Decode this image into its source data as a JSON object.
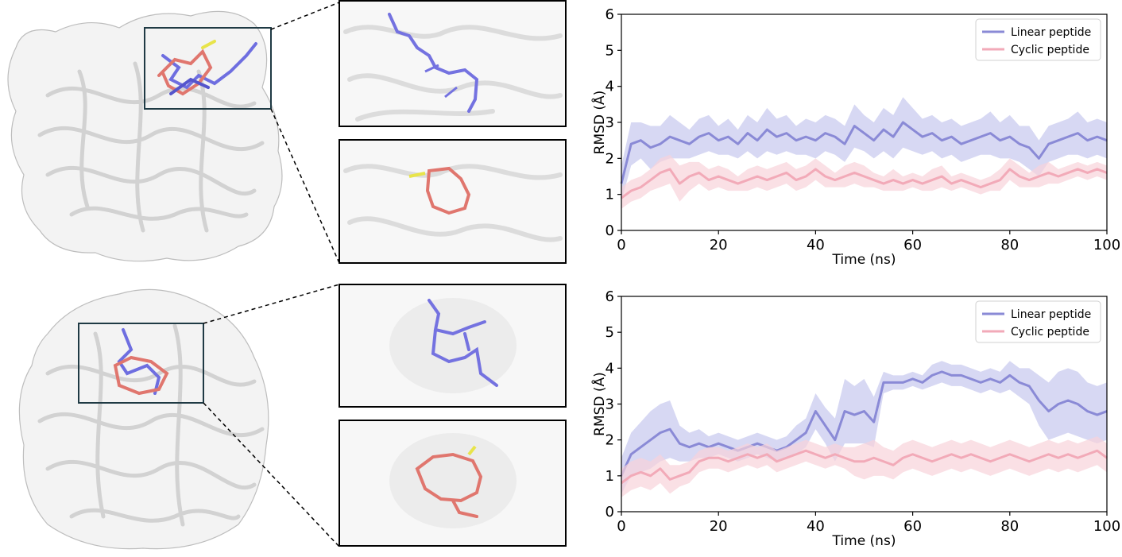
{
  "figure": {
    "colors": {
      "linear": "#8a8ad6",
      "linear_band": "#c6c8ee",
      "cyclic": "#f2aab8",
      "cyclic_band": "#f8d3da",
      "linear_stick": "#7472e0",
      "cyclic_stick": "#e07a72",
      "protein": "#d9d9d9",
      "frame": "#1f3a44"
    }
  },
  "chart_data": [
    {
      "type": "line",
      "id": "top",
      "xlabel": "Time (ns)",
      "ylabel": "RMSD (Å)",
      "xlim": [
        0,
        100
      ],
      "ylim": [
        0,
        6
      ],
      "xticks": [
        0,
        20,
        40,
        60,
        80,
        100
      ],
      "yticks": [
        0,
        1,
        2,
        3,
        4,
        5,
        6
      ],
      "legend_position": "top-right",
      "series": [
        {
          "name": "Linear peptide",
          "x": [
            0,
            2,
            4,
            6,
            8,
            10,
            12,
            14,
            16,
            18,
            20,
            22,
            24,
            26,
            28,
            30,
            32,
            34,
            36,
            38,
            40,
            42,
            44,
            46,
            48,
            50,
            52,
            54,
            56,
            58,
            60,
            62,
            64,
            66,
            68,
            70,
            72,
            74,
            76,
            78,
            80,
            82,
            84,
            86,
            88,
            90,
            92,
            94,
            96,
            98,
            100
          ],
          "values": [
            1.3,
            2.4,
            2.5,
            2.3,
            2.4,
            2.6,
            2.5,
            2.4,
            2.6,
            2.7,
            2.5,
            2.6,
            2.4,
            2.7,
            2.5,
            2.8,
            2.6,
            2.7,
            2.5,
            2.6,
            2.5,
            2.7,
            2.6,
            2.4,
            2.9,
            2.7,
            2.5,
            2.8,
            2.6,
            3.0,
            2.8,
            2.6,
            2.7,
            2.5,
            2.6,
            2.4,
            2.5,
            2.6,
            2.7,
            2.5,
            2.6,
            2.4,
            2.3,
            2.0,
            2.4,
            2.5,
            2.6,
            2.7,
            2.5,
            2.6,
            2.5
          ],
          "band": [
            0.5,
            0.6,
            0.5,
            0.6,
            0.5,
            0.6,
            0.5,
            0.4,
            0.5,
            0.5,
            0.4,
            0.5,
            0.4,
            0.5,
            0.5,
            0.6,
            0.5,
            0.5,
            0.4,
            0.5,
            0.5,
            0.5,
            0.5,
            0.5,
            0.6,
            0.5,
            0.5,
            0.6,
            0.6,
            0.7,
            0.6,
            0.5,
            0.5,
            0.5,
            0.5,
            0.5,
            0.5,
            0.5,
            0.6,
            0.5,
            0.6,
            0.5,
            0.6,
            0.5,
            0.5,
            0.5,
            0.5,
            0.6,
            0.5,
            0.5,
            0.5
          ]
        },
        {
          "name": "Cyclic peptide",
          "x": [
            0,
            2,
            4,
            6,
            8,
            10,
            12,
            14,
            16,
            18,
            20,
            22,
            24,
            26,
            28,
            30,
            32,
            34,
            36,
            38,
            40,
            42,
            44,
            46,
            48,
            50,
            52,
            54,
            56,
            58,
            60,
            62,
            64,
            66,
            68,
            70,
            72,
            74,
            76,
            78,
            80,
            82,
            84,
            86,
            88,
            90,
            92,
            94,
            96,
            98,
            100
          ],
          "values": [
            0.9,
            1.1,
            1.2,
            1.4,
            1.6,
            1.7,
            1.3,
            1.5,
            1.6,
            1.4,
            1.5,
            1.4,
            1.3,
            1.4,
            1.5,
            1.4,
            1.5,
            1.6,
            1.4,
            1.5,
            1.7,
            1.5,
            1.4,
            1.5,
            1.6,
            1.5,
            1.4,
            1.3,
            1.4,
            1.3,
            1.4,
            1.3,
            1.4,
            1.5,
            1.3,
            1.4,
            1.3,
            1.2,
            1.3,
            1.4,
            1.7,
            1.5,
            1.4,
            1.5,
            1.6,
            1.5,
            1.6,
            1.7,
            1.6,
            1.7,
            1.6
          ],
          "band": [
            0.3,
            0.3,
            0.3,
            0.3,
            0.4,
            0.4,
            0.5,
            0.4,
            0.3,
            0.3,
            0.3,
            0.3,
            0.2,
            0.3,
            0.3,
            0.3,
            0.3,
            0.3,
            0.3,
            0.3,
            0.3,
            0.3,
            0.2,
            0.3,
            0.3,
            0.3,
            0.2,
            0.2,
            0.3,
            0.2,
            0.2,
            0.2,
            0.3,
            0.3,
            0.2,
            0.2,
            0.2,
            0.2,
            0.2,
            0.3,
            0.3,
            0.3,
            0.2,
            0.3,
            0.3,
            0.2,
            0.2,
            0.2,
            0.2,
            0.2,
            0.2
          ]
        }
      ]
    },
    {
      "type": "line",
      "id": "bottom",
      "xlabel": "Time (ns)",
      "ylabel": "RMSD (Å)",
      "xlim": [
        0,
        100
      ],
      "ylim": [
        0,
        6
      ],
      "xticks": [
        0,
        20,
        40,
        60,
        80,
        100
      ],
      "yticks": [
        0,
        1,
        2,
        3,
        4,
        5,
        6
      ],
      "legend_position": "top-right",
      "series": [
        {
          "name": "Linear peptide",
          "x": [
            0,
            2,
            4,
            6,
            8,
            10,
            12,
            14,
            16,
            18,
            20,
            22,
            24,
            26,
            28,
            30,
            32,
            34,
            36,
            38,
            40,
            42,
            44,
            46,
            48,
            50,
            52,
            54,
            56,
            58,
            60,
            62,
            64,
            66,
            68,
            70,
            72,
            74,
            76,
            78,
            80,
            82,
            84,
            86,
            88,
            90,
            92,
            94,
            96,
            98,
            100
          ],
          "values": [
            1.0,
            1.6,
            1.8,
            2.0,
            2.2,
            2.3,
            1.9,
            1.8,
            1.9,
            1.8,
            1.9,
            1.8,
            1.7,
            1.8,
            1.9,
            1.8,
            1.7,
            1.8,
            2.0,
            2.2,
            2.8,
            2.4,
            2.0,
            2.8,
            2.7,
            2.8,
            2.5,
            3.6,
            3.6,
            3.6,
            3.7,
            3.6,
            3.8,
            3.9,
            3.8,
            3.8,
            3.7,
            3.6,
            3.7,
            3.6,
            3.8,
            3.6,
            3.5,
            3.1,
            2.8,
            3.0,
            3.1,
            3.0,
            2.8,
            2.7,
            2.8
          ],
          "band": [
            0.5,
            0.6,
            0.7,
            0.8,
            0.8,
            0.8,
            0.5,
            0.4,
            0.4,
            0.3,
            0.3,
            0.3,
            0.3,
            0.3,
            0.3,
            0.3,
            0.3,
            0.3,
            0.4,
            0.4,
            0.5,
            0.5,
            0.6,
            0.9,
            0.8,
            0.9,
            0.7,
            0.3,
            0.2,
            0.2,
            0.2,
            0.2,
            0.3,
            0.3,
            0.3,
            0.3,
            0.3,
            0.3,
            0.3,
            0.3,
            0.4,
            0.4,
            0.5,
            0.7,
            0.8,
            0.9,
            0.9,
            0.9,
            0.8,
            0.8,
            0.8
          ]
        },
        {
          "name": "Cyclic peptide",
          "x": [
            0,
            2,
            4,
            6,
            8,
            10,
            12,
            14,
            16,
            18,
            20,
            22,
            24,
            26,
            28,
            30,
            32,
            34,
            36,
            38,
            40,
            42,
            44,
            46,
            48,
            50,
            52,
            54,
            56,
            58,
            60,
            62,
            64,
            66,
            68,
            70,
            72,
            74,
            76,
            78,
            80,
            82,
            84,
            86,
            88,
            90,
            92,
            94,
            96,
            98,
            100
          ],
          "values": [
            0.8,
            1.0,
            1.1,
            1.0,
            1.2,
            0.9,
            1.0,
            1.1,
            1.4,
            1.5,
            1.5,
            1.4,
            1.5,
            1.6,
            1.5,
            1.6,
            1.4,
            1.5,
            1.6,
            1.7,
            1.6,
            1.5,
            1.6,
            1.5,
            1.4,
            1.4,
            1.5,
            1.4,
            1.3,
            1.5,
            1.6,
            1.5,
            1.4,
            1.5,
            1.6,
            1.5,
            1.6,
            1.5,
            1.4,
            1.5,
            1.6,
            1.5,
            1.4,
            1.5,
            1.6,
            1.5,
            1.6,
            1.5,
            1.6,
            1.7,
            1.5
          ],
          "band": [
            0.4,
            0.4,
            0.4,
            0.4,
            0.4,
            0.4,
            0.3,
            0.3,
            0.3,
            0.3,
            0.3,
            0.3,
            0.3,
            0.3,
            0.3,
            0.3,
            0.3,
            0.3,
            0.3,
            0.3,
            0.3,
            0.3,
            0.3,
            0.3,
            0.4,
            0.5,
            0.5,
            0.4,
            0.4,
            0.4,
            0.4,
            0.4,
            0.4,
            0.4,
            0.4,
            0.4,
            0.4,
            0.4,
            0.4,
            0.4,
            0.4,
            0.4,
            0.4,
            0.4,
            0.4,
            0.4,
            0.4,
            0.4,
            0.4,
            0.4,
            0.4
          ]
        }
      ]
    }
  ]
}
